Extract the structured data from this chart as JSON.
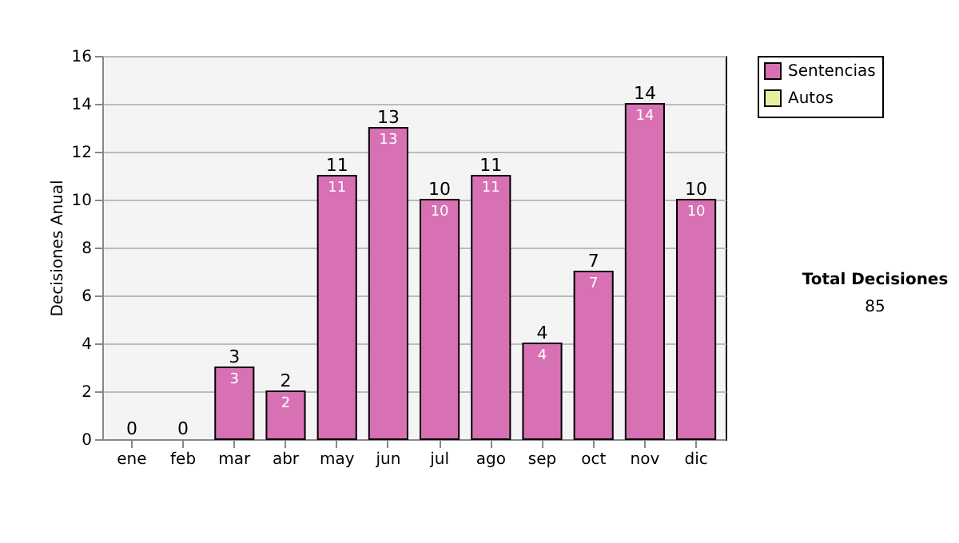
{
  "chart_data": {
    "type": "bar",
    "stacked": true,
    "ylabel": "Decisiones Anual",
    "categories": [
      "ene",
      "feb",
      "mar",
      "abr",
      "may",
      "jun",
      "jul",
      "ago",
      "sep",
      "oct",
      "nov",
      "dic"
    ],
    "series": [
      {
        "name": "Sentencias",
        "color": "#d870b4",
        "values": [
          0,
          0,
          3,
          2,
          11,
          13,
          10,
          11,
          4,
          7,
          14,
          10
        ],
        "value_labels": [
          null,
          null,
          "3",
          "2",
          "11",
          "13",
          "10",
          "11",
          "4",
          "7",
          "14",
          "10"
        ]
      },
      {
        "name": "Autos",
        "color": "#e8f0a0",
        "values": [
          0,
          0,
          0,
          0,
          0,
          0,
          0,
          0,
          0,
          0,
          0,
          0
        ]
      }
    ],
    "totals": [
      "0",
      "0",
      "3",
      "2",
      "11",
      "13",
      "10",
      "11",
      "4",
      "7",
      "14",
      "10"
    ],
    "ylim": [
      0,
      16
    ],
    "yticks": [
      0,
      2,
      4,
      6,
      8,
      10,
      12,
      14,
      16
    ],
    "grid": "y",
    "legend": "right",
    "annotations": [
      "Total Decisiones",
      "85"
    ]
  }
}
